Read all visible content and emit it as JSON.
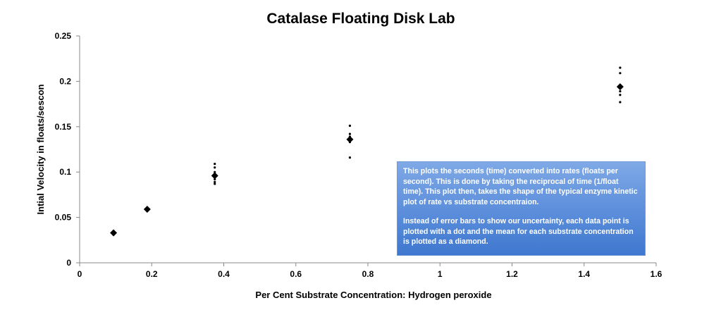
{
  "chart_data": {
    "type": "scatter",
    "title": "Catalase Floating Disk Lab",
    "xlabel": "Per Cent Substrate Concentration:  Hydrogen peroxide",
    "ylabel": "Intial Velocity in floats/sescon",
    "xlim": [
      0,
      1.6
    ],
    "ylim": [
      0,
      0.25
    ],
    "x_ticks": [
      "0",
      "0.2",
      "0.4",
      "0.6",
      "0.8",
      "1",
      "1.2",
      "1.4",
      "1.6"
    ],
    "y_ticks": [
      "0",
      "0.05",
      "0.1",
      "0.15",
      "0.2",
      "0.25"
    ],
    "x_tick_values": [
      0,
      0.2,
      0.4,
      0.6,
      0.8,
      1.0,
      1.2,
      1.4,
      1.6
    ],
    "y_tick_values": [
      0,
      0.05,
      0.1,
      0.15,
      0.2,
      0.25
    ],
    "grid": false,
    "legend": "none",
    "series": [
      {
        "marker": "dot",
        "points": [
          {
            "x": 0.094,
            "y": 0.031
          },
          {
            "x": 0.094,
            "y": 0.033
          },
          {
            "x": 0.094,
            "y": 0.035
          },
          {
            "x": 0.1875,
            "y": 0.057
          },
          {
            "x": 0.1875,
            "y": 0.06
          },
          {
            "x": 0.375,
            "y": 0.087
          },
          {
            "x": 0.375,
            "y": 0.089
          },
          {
            "x": 0.375,
            "y": 0.092
          },
          {
            "x": 0.375,
            "y": 0.097
          },
          {
            "x": 0.375,
            "y": 0.1
          },
          {
            "x": 0.375,
            "y": 0.105
          },
          {
            "x": 0.375,
            "y": 0.109
          },
          {
            "x": 0.75,
            "y": 0.116
          },
          {
            "x": 0.75,
            "y": 0.133
          },
          {
            "x": 0.75,
            "y": 0.137
          },
          {
            "x": 0.75,
            "y": 0.139
          },
          {
            "x": 0.75,
            "y": 0.142
          },
          {
            "x": 0.75,
            "y": 0.151
          },
          {
            "x": 1.5,
            "y": 0.177
          },
          {
            "x": 1.5,
            "y": 0.185
          },
          {
            "x": 1.5,
            "y": 0.189
          },
          {
            "x": 1.5,
            "y": 0.192
          },
          {
            "x": 1.5,
            "y": 0.195
          },
          {
            "x": 1.5,
            "y": 0.209
          },
          {
            "x": 1.5,
            "y": 0.215
          }
        ]
      },
      {
        "marker": "diamond",
        "points": [
          {
            "x": 0.094,
            "y": 0.033
          },
          {
            "x": 0.1875,
            "y": 0.059
          },
          {
            "x": 0.375,
            "y": 0.096
          },
          {
            "x": 0.75,
            "y": 0.136
          },
          {
            "x": 1.5,
            "y": 0.194
          }
        ]
      }
    ],
    "annotation": {
      "paragraph1": "This  plots the seconds (time) converted into rates (floats per second).  This is done by taking the reciprocal of time (1/float time).  This plot then, takes the shape of the typical enzyme kinetic plot of rate vs substrate concentraion.",
      "paragraph2": "Instead of error bars to show our uncertainty,  each data point is plotted with a dot and the mean for each substrate concentration is plotted as a diamond."
    }
  },
  "colors": {
    "background": "#ffffff",
    "axis": "#888888",
    "marker": "#000000",
    "annotation_fill_top": "#7fa9e6",
    "annotation_fill_bottom": "#3f78cf",
    "annotation_text": "#ffffff"
  }
}
